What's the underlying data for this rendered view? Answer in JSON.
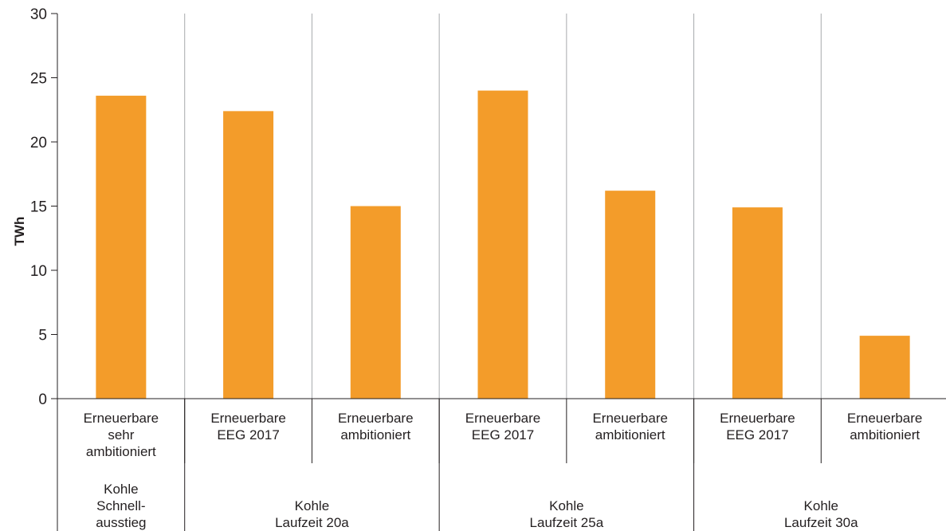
{
  "chart_data": {
    "type": "bar",
    "ylabel": "TWh",
    "ylim": [
      0,
      30
    ],
    "yticks": [
      0,
      5,
      10,
      15,
      20,
      25,
      30
    ],
    "grid": true,
    "bar_color": "#f39c2a",
    "categories": [
      {
        "label_lines": [
          "Erneuerbare",
          "sehr",
          "ambitioniert"
        ],
        "value": 23.6
      },
      {
        "label_lines": [
          "Erneuerbare",
          "EEG 2017"
        ],
        "value": 22.4
      },
      {
        "label_lines": [
          "Erneuerbare",
          "ambitioniert"
        ],
        "value": 15.0
      },
      {
        "label_lines": [
          "Erneuerbare",
          "EEG 2017"
        ],
        "value": 24.0
      },
      {
        "label_lines": [
          "Erneuerbare",
          "ambitioniert"
        ],
        "value": 16.2
      },
      {
        "label_lines": [
          "Erneuerbare",
          "EEG 2017"
        ],
        "value": 14.9
      },
      {
        "label_lines": [
          "Erneuerbare",
          "ambitioniert"
        ],
        "value": 4.9
      }
    ],
    "groups": [
      {
        "label_lines": [
          "Kohle",
          "Schnell-",
          "ausstieg"
        ],
        "span": 1
      },
      {
        "label_lines": [
          "Kohle",
          "Laufzeit 20a"
        ],
        "span": 2
      },
      {
        "label_lines": [
          "Kohle",
          "Laufzeit 25a"
        ],
        "span": 2
      },
      {
        "label_lines": [
          "Kohle",
          "Laufzeit 30a"
        ],
        "span": 2
      }
    ]
  }
}
